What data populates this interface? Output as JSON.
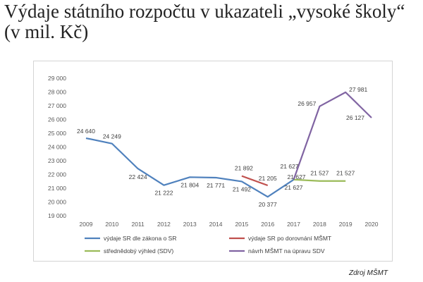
{
  "header": {
    "title": "Výdaje státního rozpočtu v ukazateli „vysoké školy“ (v mil. Kč)"
  },
  "footer": {
    "source": "Zdroj MŠMT"
  },
  "chart_data": {
    "type": "line",
    "title": "Výdaje státního rozpočtu v ukazateli „vysoké školy“ (v mil. Kč)",
    "xlabel": "",
    "ylabel": "",
    "categories": [
      "2009",
      "2010",
      "2011",
      "2012",
      "2013",
      "2014",
      "2015",
      "2016",
      "2017",
      "2018",
      "2019",
      "2020"
    ],
    "ylim": [
      19000,
      29000
    ],
    "yticks": [
      19000,
      20000,
      21000,
      22000,
      23000,
      24000,
      25000,
      26000,
      27000,
      28000,
      29000
    ],
    "ytick_labels": [
      "19 000",
      "20 000",
      "21 000",
      "22 000",
      "23 000",
      "24 000",
      "25 000",
      "26 000",
      "27 000",
      "28 000",
      "29 000"
    ],
    "grid": false,
    "legend_position": "bottom",
    "series": [
      {
        "name": "výdaje SR dle zákona o SR",
        "color": "#4f81bd",
        "values": [
          24640,
          24249,
          22424,
          21222,
          21804,
          21771,
          21492,
          20377,
          21627,
          null,
          null,
          null
        ],
        "labels": [
          "24 640",
          "24 249",
          "22 424",
          "21 222",
          "21 804",
          "21 771",
          "21 492",
          "20 377",
          "21 627",
          null,
          null,
          null
        ]
      },
      {
        "name": "výdaje SR po dorovnání MŠMT",
        "color": "#c0504d",
        "values": [
          null,
          null,
          null,
          null,
          null,
          null,
          21892,
          21205,
          null,
          null,
          null,
          null
        ],
        "labels": [
          null,
          null,
          null,
          null,
          null,
          null,
          "21 892",
          "21 205",
          null,
          null,
          null,
          null
        ]
      },
      {
        "name": "střednědobý výhled (SDV)",
        "color": "#9bbb59",
        "values": [
          null,
          null,
          null,
          null,
          null,
          null,
          null,
          null,
          21627,
          21527,
          21527,
          null
        ],
        "labels": [
          null,
          null,
          null,
          null,
          null,
          null,
          null,
          null,
          "21 627",
          "21 527",
          "21 527",
          null
        ]
      },
      {
        "name": "návrh MŠMT na úpravu SDV",
        "color": "#8064a2",
        "values": [
          null,
          null,
          null,
          null,
          null,
          null,
          null,
          null,
          21627,
          26957,
          27981,
          26127
        ],
        "labels": [
          null,
          null,
          null,
          null,
          null,
          null,
          null,
          null,
          null,
          "26 957",
          "27 981",
          "26 127"
        ]
      }
    ]
  }
}
